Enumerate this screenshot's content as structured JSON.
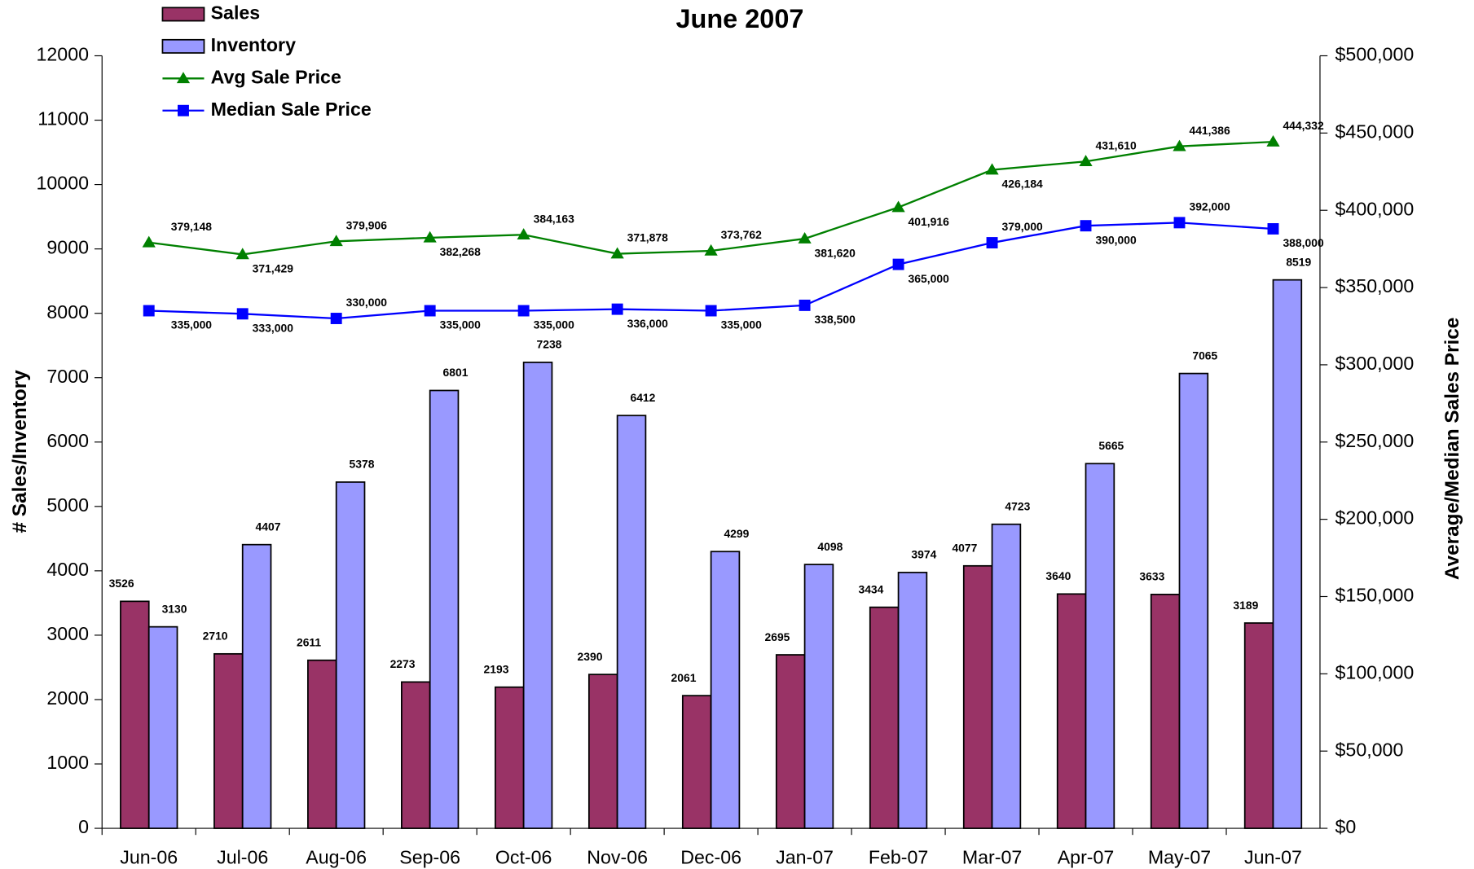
{
  "chart_data": {
    "type": "bar",
    "title": "June 2007",
    "categories": [
      "Jun-06",
      "Jul-06",
      "Aug-06",
      "Sep-06",
      "Oct-06",
      "Nov-06",
      "Dec-06",
      "Jan-07",
      "Feb-07",
      "Mar-07",
      "Apr-07",
      "May-07",
      "Jun-07"
    ],
    "y_label": "# Sales/Inventory",
    "y2_label": "Average/Median Sales Price",
    "ylim": [
      0,
      12000
    ],
    "yticks": [
      0,
      1000,
      2000,
      3000,
      4000,
      5000,
      6000,
      7000,
      8000,
      9000,
      10000,
      11000,
      12000
    ],
    "y2lim": [
      0,
      500000
    ],
    "y2ticks": [
      {
        "value": 0,
        "label": "$0"
      },
      {
        "value": 50000,
        "label": "$50,000"
      },
      {
        "value": 100000,
        "label": "$100,000"
      },
      {
        "value": 150000,
        "label": "$150,000"
      },
      {
        "value": 200000,
        "label": "$200,000"
      },
      {
        "value": 250000,
        "label": "$250,000"
      },
      {
        "value": 300000,
        "label": "$300,000"
      },
      {
        "value": 350000,
        "label": "$350,000"
      },
      {
        "value": 400000,
        "label": "$400,000"
      },
      {
        "value": 450000,
        "label": "$450,000"
      },
      {
        "value": 500000,
        "label": "$500,000"
      }
    ],
    "series": [
      {
        "name": "Sales",
        "type": "bar",
        "color": "#993366",
        "values": [
          3526,
          2710,
          2611,
          2273,
          2193,
          2390,
          2061,
          2695,
          3434,
          4077,
          3640,
          3633,
          3189
        ]
      },
      {
        "name": "Inventory",
        "type": "bar",
        "color": "#9999ff",
        "values": [
          3130,
          4407,
          5378,
          6801,
          7238,
          6412,
          4299,
          4098,
          3974,
          4723,
          5665,
          7065,
          8519
        ]
      },
      {
        "name": "Avg Sale Price",
        "type": "line",
        "axis": "y2",
        "color": "#008000",
        "marker": "triangle",
        "values": [
          379148,
          371429,
          379906,
          382268,
          384163,
          371878,
          373762,
          381620,
          401916,
          426184,
          431610,
          441386,
          444332
        ],
        "value_labels": [
          "379,148",
          "371,429",
          "379,906",
          "382,268",
          "384,163",
          "371,878",
          "373,762",
          "381,620",
          "401,916",
          "426,184",
          "431,610",
          "441,386",
          "444,332"
        ]
      },
      {
        "name": "Median Sale Price",
        "type": "line",
        "axis": "y2",
        "color": "#0000ff",
        "marker": "square",
        "values": [
          335000,
          333000,
          330000,
          335000,
          335000,
          336000,
          335000,
          338500,
          365000,
          379000,
          390000,
          392000,
          388000
        ],
        "value_labels": [
          "335,000",
          "333,000",
          "330,000",
          "335,000",
          "335,000",
          "336,000",
          "335,000",
          "338,500",
          "365,000",
          "379,000",
          "390,000",
          "392,000",
          "388,000"
        ]
      }
    ]
  }
}
